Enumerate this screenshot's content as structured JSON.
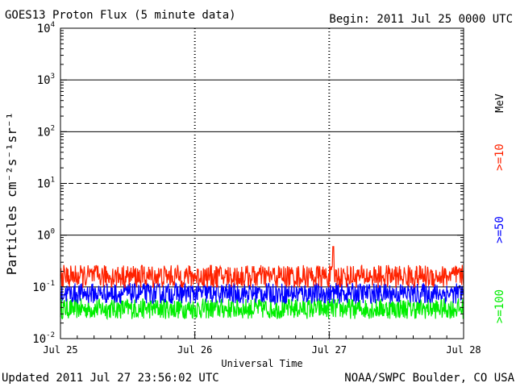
{
  "chart_data": {
    "type": "line",
    "title": "GOES13 Proton Flux (5 minute data)",
    "begin_label": "Begin: 2011 Jul 25 0000 UTC",
    "xlabel": "Universal Time",
    "ylabel": "Particles cm⁻²s⁻¹sr⁻¹",
    "y_scale": "log",
    "ylim": [
      0.01,
      10000
    ],
    "y_ticks": [
      {
        "value": 0.01,
        "base": "10",
        "exp": "-2"
      },
      {
        "value": 0.1,
        "base": "10",
        "exp": "-1"
      },
      {
        "value": 1,
        "base": "10",
        "exp": "0"
      },
      {
        "value": 10,
        "base": "10",
        "exp": "1"
      },
      {
        "value": 100,
        "base": "10",
        "exp": "2"
      },
      {
        "value": 1000,
        "base": "10",
        "exp": "3"
      },
      {
        "value": 10000,
        "base": "10",
        "exp": "4"
      }
    ],
    "x_ticks": [
      "Jul 25",
      "Jul 26",
      "Jul 27",
      "Jul 28"
    ],
    "x_range_days": [
      0,
      3
    ],
    "threshold_lines": [
      {
        "value": 1000,
        "style": "solid"
      },
      {
        "value": 100,
        "style": "solid"
      },
      {
        "value": 10,
        "style": "dashed"
      },
      {
        "value": 1,
        "style": "solid"
      },
      {
        "value": 0.1,
        "style": "solid"
      }
    ],
    "legend_unit": "MeV",
    "series": [
      {
        "name": ">=10",
        "color": "#ff2200",
        "typical": 0.16,
        "spread": 0.22,
        "max": 0.6
      },
      {
        "name": ">=50",
        "color": "#0000ff",
        "typical": 0.075,
        "spread": 0.2,
        "max": 0.14
      },
      {
        "name": ">=100",
        "color": "#00ee00",
        "typical": 0.038,
        "spread": 0.2,
        "max": 0.075
      }
    ]
  },
  "footer": {
    "updated": "Updated 2011 Jul 27 23:56:02 UTC",
    "credit": "NOAA/SWPC Boulder, CO USA"
  }
}
